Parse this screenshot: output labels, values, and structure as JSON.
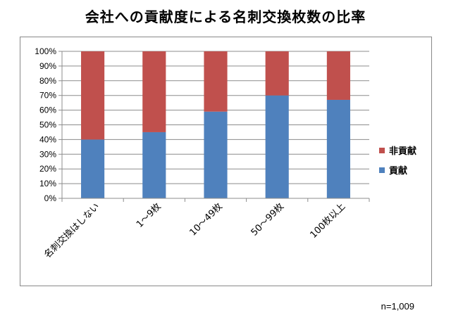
{
  "chart_data": {
    "type": "bar",
    "stacked": true,
    "title": "会社への貢献度による名刺交換枚数の比率",
    "categories": [
      "名刺交換はしない",
      "1～9枚",
      "10～49枚",
      "50～99枚",
      "100枚以上"
    ],
    "series": [
      {
        "name": "貢献",
        "color": "#4F81BD",
        "values": [
          40,
          45,
          59,
          70,
          67
        ]
      },
      {
        "name": "非貢献",
        "color": "#C0504D",
        "values": [
          60,
          55,
          41,
          30,
          33
        ]
      }
    ],
    "ylim": [
      0,
      100
    ],
    "yticks": [
      "0%",
      "10%",
      "20%",
      "30%",
      "40%",
      "50%",
      "60%",
      "70%",
      "80%",
      "90%",
      "100%"
    ],
    "grid": true,
    "legend_position": "right",
    "legend_order": [
      "非貢献",
      "貢献"
    ],
    "note": "n=1,009"
  }
}
